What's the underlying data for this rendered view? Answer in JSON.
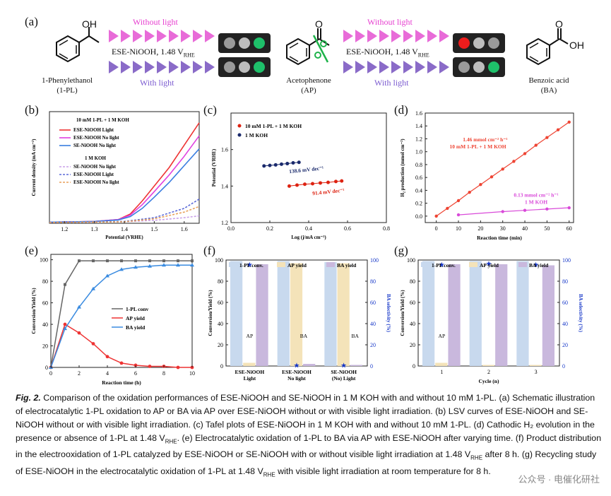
{
  "panel_a": {
    "label": "(a)",
    "without_light_1": "Without light",
    "without_light_2": "Without light",
    "with_light_1": "With light",
    "with_light_2": "With light",
    "condition_1": "ESE-NiOOH, 1.48 V",
    "condition_2": "ESE-NiOOH, 1.48 V",
    "condition_sub": "RHE",
    "mol1_name": "1-Phenylethanol",
    "mol1_abbr": "(1-PL)",
    "mol2_name": "Acetophenone",
    "mol2_abbr": "(AP)",
    "mol3_name": "Benzoic acid",
    "mol3_abbr": "(BA)",
    "oh": "OH",
    "o": "O"
  },
  "panel_b": {
    "label": "(b)",
    "ylabel": "Current density (mA cm⁻²)",
    "xlabel": "Potential (V",
    "xlabel_sub": "RHE",
    "legend_title1": "10 mM 1-PL + 1 M KOH",
    "legend_title2": "1 M KOH",
    "legend": [
      "ESE-NiOOH  Light",
      "ESE-NiOOH  No light",
      "SE-NiOOH  No light",
      "SE-NiOOH  No light",
      "ESE-NiOOH  Light",
      "ESE-NiOOH  No light"
    ],
    "xticks": [
      "1.2",
      "1.3",
      "1.4",
      "1.5",
      "1.6"
    ]
  },
  "panel_c": {
    "label": "(c)",
    "ylabel": "Potential (V",
    "ylabel_sub": "RHE",
    "xlabel": "Log (j/mA cm⁻²)",
    "legend": [
      "10 mM 1-PL + 1 M KOH",
      "1 M KOH"
    ],
    "ann1": "138.6 mV dec⁻¹",
    "ann2": "91.4 mV dec⁻¹",
    "xticks": [
      "0.0",
      "0.2",
      "0.4",
      "0.6",
      "0.8"
    ],
    "yticks": [
      "1.2",
      "1.4",
      "1.6"
    ]
  },
  "panel_d": {
    "label": "(d)",
    "ylabel": "H₂ production (mmol cm⁻²)",
    "xlabel": "Reaction time (min)",
    "ann1a": "1.46 mmol cm⁻² h⁻¹",
    "ann1b": "10 mM 1-PL + 1 M KOH",
    "ann2a": "0.13 mmol cm⁻² h⁻¹",
    "ann2b": "1 M KOH",
    "xticks": [
      "0",
      "10",
      "20",
      "30",
      "40",
      "50",
      "60"
    ],
    "yticks": [
      "0.0",
      "0.2",
      "0.4",
      "0.6",
      "0.8",
      "1.0",
      "1.2",
      "1.4",
      "1.6"
    ]
  },
  "panel_e": {
    "label": "(e)",
    "ylabel": "Conversion/Yield (%)",
    "xlabel": "Reaction time (h)",
    "legend": [
      "1-PL conv",
      "AP yield",
      "BA yield"
    ],
    "xticks": [
      "0",
      "2",
      "4",
      "6",
      "8",
      "10"
    ],
    "yticks": [
      "0",
      "20",
      "40",
      "60",
      "80",
      "100"
    ]
  },
  "panel_f": {
    "label": "(f)",
    "ylabel": "Conversion/Yield (%)",
    "ylabel2": "BA selectivity (%)",
    "legend": [
      "1-PL conv.",
      "AP yield",
      "BA yield"
    ],
    "cats": [
      "ESE-NiOOH\nLight",
      "ESE-NiOOH\nNo light",
      "SE-NiOOH\n(No) Light"
    ],
    "ann_ap": "AP",
    "ann_ba1": "BA",
    "ann_ba2": "BA",
    "yticks": [
      "0",
      "20",
      "40",
      "60",
      "80",
      "100"
    ]
  },
  "panel_g": {
    "label": "(g)",
    "ylabel": "Conversion/Yield (%)",
    "ylabel2": "BA selectivity (%)",
    "legend": [
      "1-PL conv.",
      "AP yield",
      "BA yield"
    ],
    "xlabel": "Cycle (n)",
    "ann_ap": "AP",
    "xticks": [
      "1",
      "2",
      "3"
    ],
    "yticks": [
      "0",
      "20",
      "40",
      "60",
      "80",
      "100"
    ]
  },
  "caption": {
    "fig": "Fig. 2.",
    "text": " Comparison of the oxidation performances of ESE-NiOOH and SE-NiOOH in 1 M KOH with and without 10 mM 1-PL. (a) Schematic illustration of electrocatalytic 1-PL oxidation to AP or BA via AP over ESE-NiOOH without or with visible light irradiation. (b) LSV curves of ESE-NiOOH and SE-NiOOH without or with visible light irradiation. (c) Tafel plots of ESE-NiOOH in 1 M KOH with and without 10 mM 1-PL. (d) Cathodic H₂ evolution in the presence or absence of 1-PL at 1.48 V",
    "text_sub": "RHE",
    "text2": ". (e) Electrocatalytic oxidation of 1-PL to BA via AP with ESE-NiOOH after varying time. (f) Product distribution in the electrooxidation of 1-PL catalyzed by ESE-NiOOH or SE-NiOOH with or without visible light irradiation at 1.48 V",
    "text3": " after 8 h. (g) Recycling study of ESE-NiOOH in the electrocatalytic oxidation of 1-PL at 1.48 V",
    "text4": " with visible light irradiation at room temperature for 8 h."
  },
  "watermark": "公众号 · 电催化研社",
  "chart_data": [
    {
      "type": "line",
      "title": "",
      "xlabel": "Potential (V_RHE)",
      "ylabel": "Current density (mA cm⁻²)",
      "xlim": [
        1.15,
        1.65
      ],
      "ylim": [
        0,
        30
      ],
      "series": [
        {
          "name": "ESE-NiOOH Light",
          "color": "#e33",
          "x": [
            1.15,
            1.3,
            1.38,
            1.42,
            1.46,
            1.5,
            1.55,
            1.6,
            1.65
          ],
          "y": [
            0.3,
            0.5,
            1,
            2.5,
            6,
            10,
            15,
            21,
            27
          ]
        },
        {
          "name": "ESE-NiOOH No light",
          "color": "#e040e0",
          "x": [
            1.15,
            1.3,
            1.38,
            1.42,
            1.46,
            1.5,
            1.55,
            1.6,
            1.65
          ],
          "y": [
            0.3,
            0.5,
            1,
            2.2,
            5,
            8.5,
            13,
            18,
            23.5
          ]
        },
        {
          "name": "SE-NiOOH No light",
          "color": "#3a7ee0",
          "x": [
            1.15,
            1.3,
            1.38,
            1.42,
            1.46,
            1.5,
            1.55,
            1.6,
            1.65
          ],
          "y": [
            0.3,
            0.5,
            0.9,
            1.8,
            4,
            7,
            11,
            15.5,
            20
          ]
        },
        {
          "name": "SE-NiOOH No light (KOH)",
          "color": "#c9a0e8",
          "x": [
            1.15,
            1.4,
            1.5,
            1.6,
            1.65
          ],
          "y": [
            0.2,
            0.4,
            0.8,
            1.5,
            2
          ]
        },
        {
          "name": "ESE-NiOOH Light (KOH)",
          "color": "#5b6ad8",
          "x": [
            1.15,
            1.4,
            1.5,
            1.6,
            1.65
          ],
          "y": [
            0.2,
            0.5,
            1.5,
            4,
            6.5
          ]
        },
        {
          "name": "ESE-NiOOH No light (KOH)",
          "color": "#e8a05a",
          "x": [
            1.15,
            1.4,
            1.5,
            1.6,
            1.65
          ],
          "y": [
            0.2,
            0.4,
            1.2,
            3,
            4.5
          ]
        }
      ]
    },
    {
      "type": "scatter",
      "xlabel": "Log (j/mA cm⁻²)",
      "ylabel": "Potential (V_RHE)",
      "xlim": [
        0,
        0.8
      ],
      "ylim": [
        1.2,
        1.8
      ],
      "series": [
        {
          "name": "10 mM 1-PL + 1 M KOH",
          "color": "#d21",
          "x": [
            0.3,
            0.34,
            0.38,
            0.42,
            0.46,
            0.5,
            0.54,
            0.57
          ],
          "y": [
            1.4,
            1.405,
            1.41,
            1.413,
            1.417,
            1.42,
            1.425,
            1.428
          ]
        },
        {
          "name": "1 M KOH",
          "color": "#1a2a6c",
          "x": [
            0.17,
            0.2,
            0.23,
            0.26,
            0.29,
            0.32,
            0.35
          ],
          "y": [
            1.51,
            1.513,
            1.516,
            1.52,
            1.523,
            1.527,
            1.53
          ]
        }
      ]
    },
    {
      "type": "line",
      "xlabel": "Reaction time (min)",
      "ylabel": "H₂ production (mmol cm⁻²)",
      "xlim": [
        -5,
        62
      ],
      "ylim": [
        -0.1,
        1.6
      ],
      "series": [
        {
          "name": "10 mM 1-PL + 1 M KOH",
          "color": "#e43",
          "x": [
            0,
            5,
            10,
            15,
            20,
            25,
            30,
            35,
            40,
            45,
            50,
            55,
            60
          ],
          "y": [
            0,
            0.12,
            0.24,
            0.37,
            0.49,
            0.61,
            0.73,
            0.85,
            0.97,
            1.1,
            1.22,
            1.34,
            1.46
          ]
        },
        {
          "name": "1 M KOH",
          "color": "#d94ad9",
          "x": [
            10,
            30,
            40,
            50,
            60
          ],
          "y": [
            0.02,
            0.07,
            0.09,
            0.11,
            0.13
          ]
        }
      ]
    },
    {
      "type": "line",
      "xlabel": "Reaction time (h)",
      "ylabel": "Conversion/Yield (%)",
      "xlim": [
        0,
        10
      ],
      "ylim": [
        0,
        105
      ],
      "series": [
        {
          "name": "1-PL conv",
          "color": "#666",
          "x": [
            0,
            1,
            2,
            3,
            4,
            5,
            6,
            7,
            8,
            9,
            10
          ],
          "y": [
            0,
            77,
            99,
            99,
            99,
            99,
            99,
            99,
            99,
            99,
            99
          ]
        },
        {
          "name": "AP yield",
          "color": "#e33",
          "x": [
            0,
            1,
            2,
            3,
            4,
            5,
            6,
            7,
            8,
            9,
            10
          ],
          "y": [
            0,
            40,
            32,
            22,
            10,
            4,
            2,
            1,
            1,
            0,
            0
          ]
        },
        {
          "name": "BA yield",
          "color": "#3a8be0",
          "x": [
            0,
            1,
            2,
            3,
            4,
            5,
            6,
            7,
            8,
            9,
            10
          ],
          "y": [
            0,
            36,
            56,
            73,
            85,
            91,
            93,
            94,
            95,
            95,
            95
          ]
        }
      ]
    },
    {
      "type": "bar",
      "categories": [
        "ESE-NiOOH Light",
        "ESE-NiOOH No light",
        "SE-NiOOH (No) Light"
      ],
      "series": [
        {
          "name": "1-PL conv.",
          "values": [
            99,
            99,
            98
          ]
        },
        {
          "name": "AP yield",
          "values": [
            3,
            97,
            97
          ]
        },
        {
          "name": "BA yield",
          "values": [
            96,
            2,
            1
          ]
        }
      ],
      "selectivity": [
        96,
        1,
        1
      ],
      "ylim": [
        0,
        100
      ]
    },
    {
      "type": "bar",
      "categories": [
        "1",
        "2",
        "3"
      ],
      "series": [
        {
          "name": "1-PL conv.",
          "values": [
            99,
            99,
            99
          ]
        },
        {
          "name": "AP yield",
          "values": [
            3,
            1,
            1
          ]
        },
        {
          "name": "BA yield",
          "values": [
            96,
            96,
            95
          ]
        }
      ],
      "selectivity": [
        96,
        97,
        96
      ],
      "ylim": [
        0,
        100
      ]
    }
  ]
}
